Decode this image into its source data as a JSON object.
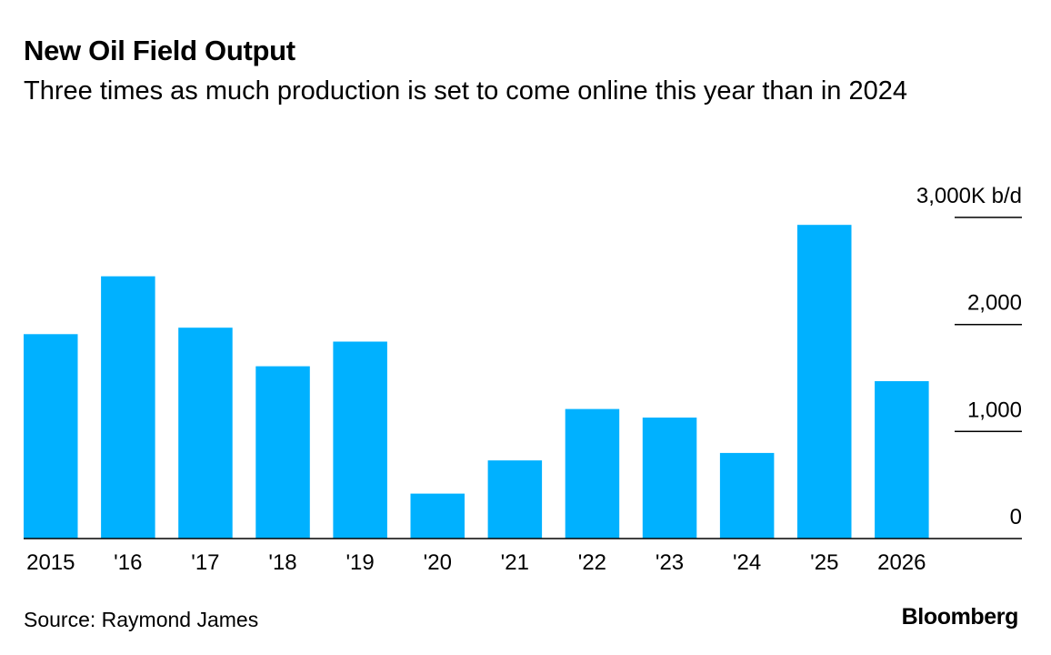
{
  "header": {
    "title": "New Oil Field Output",
    "subtitle": "Three times as much production is set to come online this year than in 2024"
  },
  "footer": {
    "source": "Source: Raymond James",
    "brand": "Bloomberg"
  },
  "colors": {
    "bar": "#00B1FF",
    "axis": "#000000",
    "text": "#000000"
  },
  "chart_data": {
    "type": "bar",
    "title": "New Oil Field Output",
    "subtitle": "Three times as much production is set to come online this year than in 2024",
    "xlabel": "",
    "ylabel": "",
    "y_unit": "K b/d",
    "categories": [
      "2015",
      "'16",
      "'17",
      "'18",
      "'19",
      "'20",
      "'21",
      "'22",
      "'23",
      "'24",
      "'25",
      "2026"
    ],
    "values": [
      1910,
      2450,
      1970,
      1610,
      1840,
      420,
      730,
      1210,
      1130,
      800,
      2930,
      1470
    ],
    "ylim": [
      0,
      3000
    ],
    "y_ticks": [
      0,
      1000,
      2000,
      3000
    ],
    "y_tick_labels": [
      "0",
      "1,000",
      "2,000",
      "3,000"
    ],
    "y_axis_position": "right",
    "grid": false,
    "legend": "none",
    "source": "Source: Raymond James"
  }
}
